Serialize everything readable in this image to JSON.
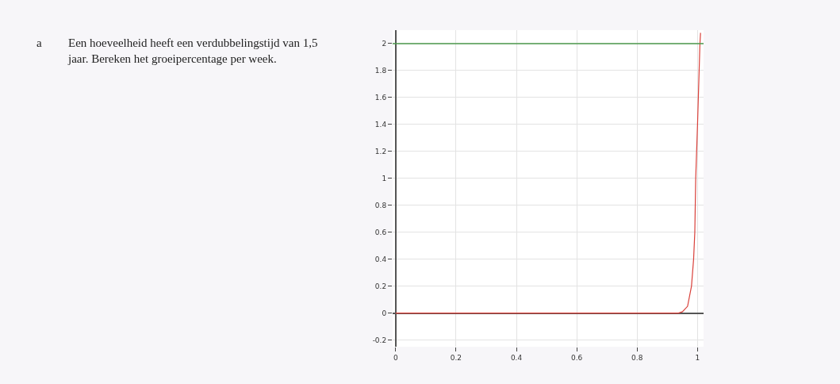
{
  "chart_data": {
    "type": "line",
    "annotations": [
      "a",
      "Een hoeveelheid heeft een verdubbelingstijd van 1,5 jaar. Bereken het groeipercentage per week."
    ],
    "series": [
      {
        "color": "#d9403a",
        "x": [
          0,
          0.5,
          0.9,
          0.937,
          0.95,
          0.967,
          0.98,
          0.987,
          0.991,
          0.994,
          1.0,
          1.008,
          1.01
        ],
        "values": [
          0,
          0,
          0,
          0,
          0.01,
          0.05,
          0.2,
          0.4,
          0.6,
          1,
          1.4,
          2,
          2.08
        ]
      }
    ],
    "ref_lines": [
      {
        "axis": "y",
        "value": 2,
        "color": "#4e9a4e"
      }
    ],
    "xlim": [
      -0.01,
      1.02
    ],
    "ylim": [
      -0.25,
      2.1
    ],
    "xticks": [
      0,
      0.2,
      0.4,
      0.6,
      0.8,
      1
    ],
    "yticks": [
      -0.2,
      0,
      0.2,
      0.4,
      0.6,
      0.8,
      1,
      1.2,
      1.4,
      1.6,
      1.8,
      2
    ],
    "grid": true,
    "line_style": "solid",
    "marker": "none"
  }
}
